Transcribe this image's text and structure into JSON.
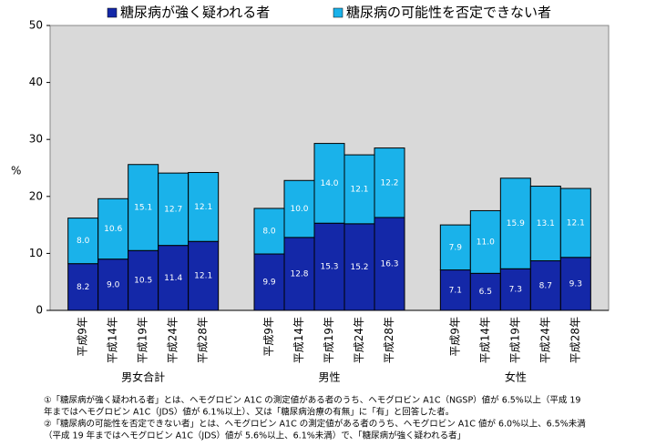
{
  "chart_data": {
    "type": "stacked-bar",
    "y_label": "%",
    "groups": [
      "男女合計",
      "男性",
      "女性"
    ],
    "categories": [
      "平成9年",
      "平成14年",
      "平成19年",
      "平成24年",
      "平成28年",
      "平成9年",
      "平成14年",
      "平成19年",
      "平成24年",
      "平成28年",
      "平成9年",
      "平成14年",
      "平成19年",
      "平成24年",
      "平成28年"
    ],
    "series": [
      {
        "name": "糖尿病が強く疑われる者",
        "color": "#1428a8",
        "values": [
          8.2,
          9.0,
          10.5,
          11.4,
          12.1,
          9.9,
          12.8,
          15.3,
          15.2,
          16.3,
          7.1,
          6.5,
          7.3,
          8.7,
          9.3
        ],
        "value_labels": [
          "8.2",
          "9.0",
          "10.5",
          "11.4",
          "12.1",
          "9.9",
          "12.8",
          "15.3",
          "15.2",
          "16.3",
          "7.1",
          "6.5",
          "7.3",
          "8.7",
          "9.3"
        ]
      },
      {
        "name": "糖尿病の可能性を否定できない者",
        "color": "#1ab2ea",
        "values": [
          8.0,
          10.6,
          15.1,
          12.7,
          12.1,
          8.0,
          10.0,
          14.0,
          12.1,
          12.2,
          7.9,
          11.0,
          15.9,
          13.1,
          12.1
        ],
        "value_labels": [
          "8.0",
          "10.6",
          "15.1",
          "12.7",
          "12.1",
          "8.0",
          "10.0",
          "14.0",
          "12.1",
          "12.2",
          "7.9",
          "11.0",
          "15.9",
          "13.1",
          "12.1"
        ]
      }
    ],
    "ylim": [
      0,
      50
    ],
    "yticks": [
      0,
      10,
      20,
      30,
      40,
      50
    ],
    "notes": [
      "①「糖尿病が強く疑われる者」とは、ヘモグロビン A1C の測定値がある者のうち、ヘモグロビン A1C（NGSP）値が 6.5%以上（平成 19",
      "年まではヘモグロビン A1C（JDS）値が 6.1%以上）、又は「糖尿病治療の有無」に「有」と回答した者。",
      "②「糖尿病の可能性を否定できない者」とは、ヘモグロビン A1C の測定値がある者のうち、ヘモグロビン A1C 値が 6.0%以上、6.5%未満",
      "（平成 19 年まではヘモグロビン A1C（JDS）値が 5.6%以上、6.1%未満）で、「糖尿病が強く疑われる者」"
    ]
  }
}
